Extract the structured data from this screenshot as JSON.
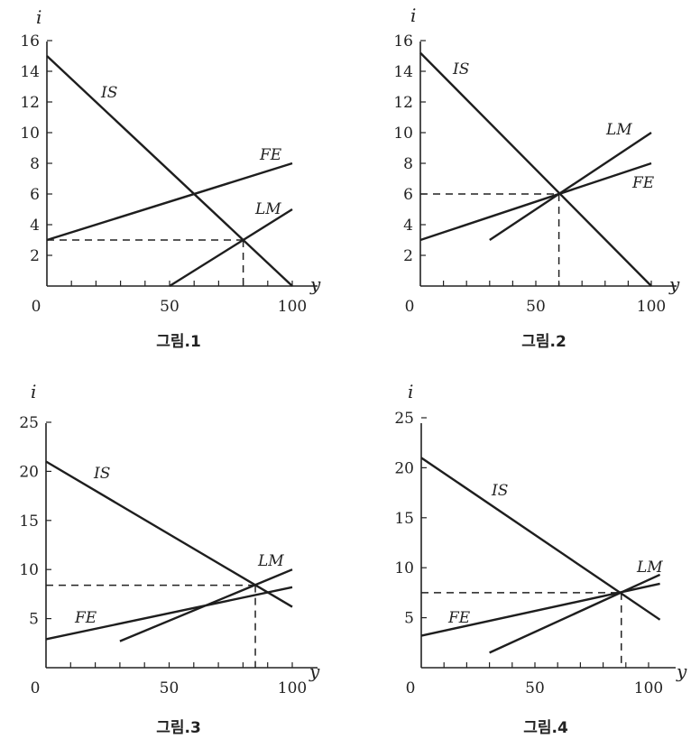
{
  "chart_data": [
    {
      "type": "line",
      "caption": "그림.1",
      "xlabel": "y",
      "ylabel": "i",
      "xlim": [
        0,
        100
      ],
      "ylim": [
        0,
        16
      ],
      "xticks": [
        50,
        100
      ],
      "yticks": [
        2,
        4,
        6,
        8,
        10,
        12,
        14,
        16
      ],
      "origin_label": "0",
      "series": [
        {
          "name": "IS",
          "points": [
            [
              0,
              15
            ],
            [
              100,
              0
            ]
          ]
        },
        {
          "name": "FE",
          "points": [
            [
              0,
              3
            ],
            [
              100,
              8
            ]
          ]
        },
        {
          "name": "LM",
          "points": [
            [
              50,
              0
            ],
            [
              100,
              5
            ]
          ]
        }
      ],
      "dashed_guide": {
        "x": 80,
        "y": 3
      }
    },
    {
      "type": "line",
      "caption": "그림.2",
      "xlabel": "y",
      "ylabel": "i",
      "xlim": [
        0,
        100
      ],
      "ylim": [
        0,
        16
      ],
      "xticks": [
        50,
        100
      ],
      "yticks": [
        2,
        4,
        6,
        8,
        10,
        12,
        14,
        16
      ],
      "origin_label": "0",
      "series": [
        {
          "name": "IS",
          "points": [
            [
              0,
              15.2
            ],
            [
              100,
              0
            ]
          ]
        },
        {
          "name": "FE",
          "points": [
            [
              0,
              3
            ],
            [
              100,
              8
            ]
          ]
        },
        {
          "name": "LM",
          "points": [
            [
              30,
              3
            ],
            [
              100,
              10
            ]
          ]
        }
      ],
      "dashed_guide": {
        "x": 60,
        "y": 6
      }
    },
    {
      "type": "line",
      "caption": "그림.3",
      "xlabel": "y",
      "ylabel": "i",
      "xlim": [
        0,
        100
      ],
      "ylim": [
        0,
        25
      ],
      "xticks": [
        50,
        100
      ],
      "yticks": [
        5,
        10,
        15,
        20,
        25
      ],
      "origin_label": "0",
      "series": [
        {
          "name": "IS",
          "points": [
            [
              0,
              21
            ],
            [
              100,
              6.2
            ]
          ]
        },
        {
          "name": "LM",
          "points": [
            [
              30,
              2.7
            ],
            [
              100,
              10
            ]
          ]
        },
        {
          "name": "FE",
          "points": [
            [
              0,
              2.9
            ],
            [
              100,
              8.2
            ]
          ]
        }
      ],
      "dashed_guide": {
        "x": 85,
        "y": 8.4
      }
    },
    {
      "type": "line",
      "caption": "그림.4",
      "xlabel": "y",
      "ylabel": "i",
      "xlim": [
        0,
        100
      ],
      "ylim": [
        0,
        25
      ],
      "xticks": [
        50,
        100
      ],
      "yticks": [
        5,
        10,
        15,
        20,
        25
      ],
      "origin_label": "0",
      "series": [
        {
          "name": "IS",
          "points": [
            [
              0,
              21
            ],
            [
              105,
              4.8
            ]
          ]
        },
        {
          "name": "LM",
          "points": [
            [
              30,
              1.5
            ],
            [
              105,
              9.3
            ]
          ]
        },
        {
          "name": "FE",
          "points": [
            [
              0,
              3.2
            ],
            [
              105,
              8.4
            ]
          ]
        }
      ],
      "dashed_guide": {
        "x": 88,
        "y": 7.5
      }
    }
  ]
}
